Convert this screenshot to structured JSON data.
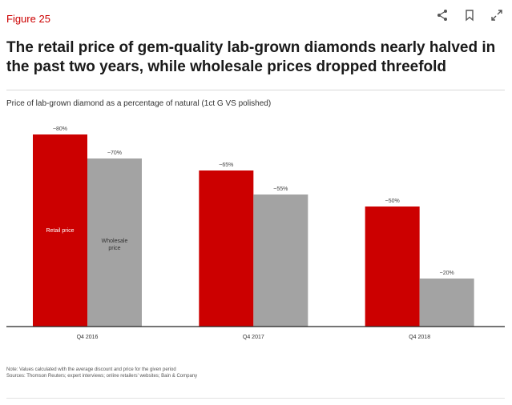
{
  "figure_label": "Figure 25",
  "title": "The retail price of gem-quality lab-grown diamonds nearly halved in the past two years, while wholesale prices dropped threefold",
  "icons": {
    "share": "share-icon",
    "bookmark": "bookmark-icon",
    "expand": "expand-icon"
  },
  "note": "Note: Values calculated with the average discount and price for the given period",
  "sources": "Sources: Thomson Reuters; expert interviews; online retailers' websites; Bain & Company",
  "chart_data": {
    "type": "bar",
    "title": "Price of lab-grown diamond as a percentage of natural (1ct G VS polished)",
    "xlabel": "",
    "ylabel": "",
    "categories": [
      "Q4 2016",
      "Q4 2017",
      "Q4 2018"
    ],
    "series": [
      {
        "name": "Retail price",
        "values": [
          80,
          65,
          50
        ],
        "labels": [
          "~80%",
          "~65%",
          "~50%"
        ],
        "color": "#cc0000"
      },
      {
        "name": "Wholesale price",
        "values": [
          70,
          55,
          20
        ],
        "labels": [
          "~70%",
          "~55%",
          "~20%"
        ],
        "color": "#a3a3a3"
      }
    ],
    "ylim": [
      0,
      80
    ],
    "grid": false,
    "legend": "inside-bars"
  }
}
